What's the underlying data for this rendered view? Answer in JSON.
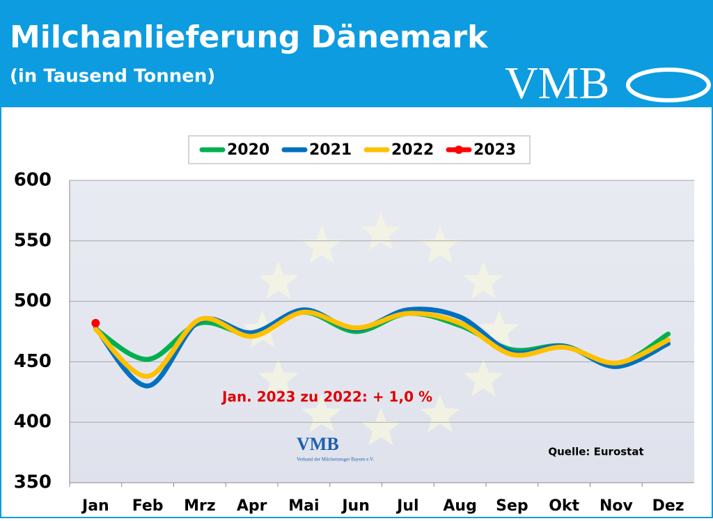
{
  "chart_data": {
    "type": "line",
    "title": "Milchanlieferung Dänemark",
    "subtitle": "(in Tausend Tonnen)",
    "logo": "VMB",
    "inner_logo": "VMB",
    "inner_logo_caption": "Verband der Milcherzeuger Bayern e.V.",
    "annotations": [
      "Jan. 2023 zu 2022: + 1,0 %",
      "Quelle: Eurostat"
    ],
    "categories": [
      "Jan",
      "Feb",
      "Mrz",
      "Apr",
      "Mai",
      "Jun",
      "Jul",
      "Aug",
      "Sep",
      "Okt",
      "Nov",
      "Dez"
    ],
    "series": [
      {
        "name": "2020",
        "color": "#00b050",
        "values": [
          477,
          452,
          482,
          473,
          491,
          475,
          490,
          480,
          460,
          463,
          448,
          473
        ]
      },
      {
        "name": "2021",
        "color": "#0070c0",
        "values": [
          478,
          430,
          484,
          474,
          493,
          477,
          493,
          487,
          458,
          463,
          446,
          465
        ]
      },
      {
        "name": "2022",
        "color": "#ffc000",
        "values": [
          477,
          438,
          485,
          471,
          491,
          478,
          490,
          482,
          456,
          462,
          449,
          468
        ]
      },
      {
        "name": "2023",
        "color": "#ff0000",
        "values": [
          482,
          null,
          null,
          null,
          null,
          null,
          null,
          null,
          null,
          null,
          null,
          null
        ]
      }
    ],
    "ylim": [
      350,
      600
    ],
    "yticks": [
      350,
      400,
      450,
      500,
      550,
      600
    ],
    "grid": true,
    "legend": "top"
  }
}
